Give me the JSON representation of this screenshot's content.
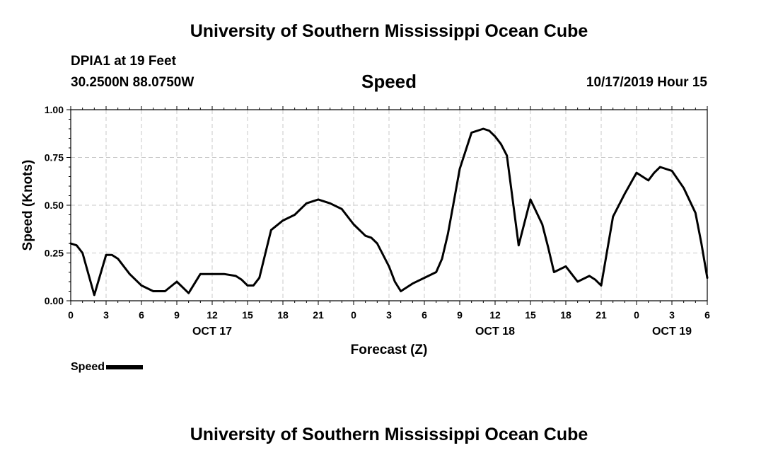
{
  "header": {
    "title": "University of Southern Mississippi Ocean Cube",
    "station": "DPIA1 at 19 Feet",
    "coordinates": "30.2500N 88.0750W",
    "variable": "Speed",
    "datetime": "10/17/2019 Hour 15"
  },
  "footer": {
    "title": "University of Southern Mississippi Ocean Cube"
  },
  "legend": {
    "label": "Speed",
    "color": "#000000"
  },
  "chart_data": {
    "type": "line",
    "title": "Speed",
    "xlabel": "Forecast (Z)",
    "ylabel": "Speed (Knots)",
    "ylim": [
      0,
      1
    ],
    "yticks": [
      "0.00",
      "0.25",
      "0.50",
      "0.75",
      "1.00"
    ],
    "xlim": [
      0,
      54
    ],
    "xticks": [
      "0",
      "3",
      "6",
      "9",
      "12",
      "15",
      "18",
      "21",
      "0",
      "3",
      "6",
      "9",
      "12",
      "15",
      "18",
      "21",
      "0",
      "3",
      "6"
    ],
    "date_labels": [
      {
        "label": "OCT 17",
        "hours_from_start": 12
      },
      {
        "label": "OCT 18",
        "hours_from_start": 36
      },
      {
        "label": "OCT 19",
        "hours_from_start": 51
      }
    ],
    "grid": true,
    "series": [
      {
        "name": "Speed",
        "color": "#000000",
        "x": [
          0,
          0.5,
          1,
          2,
          3,
          3.5,
          4,
          5,
          6,
          7,
          8,
          9,
          10,
          11,
          12,
          13,
          14,
          14.5,
          15,
          15.5,
          16,
          17,
          18,
          19,
          20,
          21,
          22,
          23,
          24,
          25,
          25.5,
          26,
          27,
          27.5,
          28,
          29,
          30,
          31,
          31.5,
          32,
          32.5,
          33,
          34,
          35,
          35.5,
          36,
          36.5,
          37,
          38,
          39,
          40,
          40.5,
          41,
          42,
          42.5,
          43,
          44,
          44.5,
          45,
          46,
          47,
          48,
          49,
          49.5,
          50,
          51,
          52,
          53,
          53.5,
          54
        ],
        "values": [
          0.3,
          0.29,
          0.25,
          0.03,
          0.24,
          0.24,
          0.22,
          0.14,
          0.08,
          0.05,
          0.05,
          0.1,
          0.04,
          0.14,
          0.14,
          0.14,
          0.13,
          0.11,
          0.08,
          0.08,
          0.12,
          0.37,
          0.42,
          0.45,
          0.51,
          0.53,
          0.51,
          0.48,
          0.4,
          0.34,
          0.33,
          0.3,
          0.18,
          0.1,
          0.05,
          0.09,
          0.12,
          0.15,
          0.22,
          0.35,
          0.52,
          0.69,
          0.88,
          0.9,
          0.89,
          0.86,
          0.82,
          0.76,
          0.29,
          0.53,
          0.4,
          0.28,
          0.15,
          0.18,
          0.14,
          0.1,
          0.13,
          0.11,
          0.08,
          0.44,
          0.56,
          0.67,
          0.63,
          0.67,
          0.7,
          0.68,
          0.59,
          0.46,
          0.3,
          0.12
        ]
      }
    ]
  }
}
